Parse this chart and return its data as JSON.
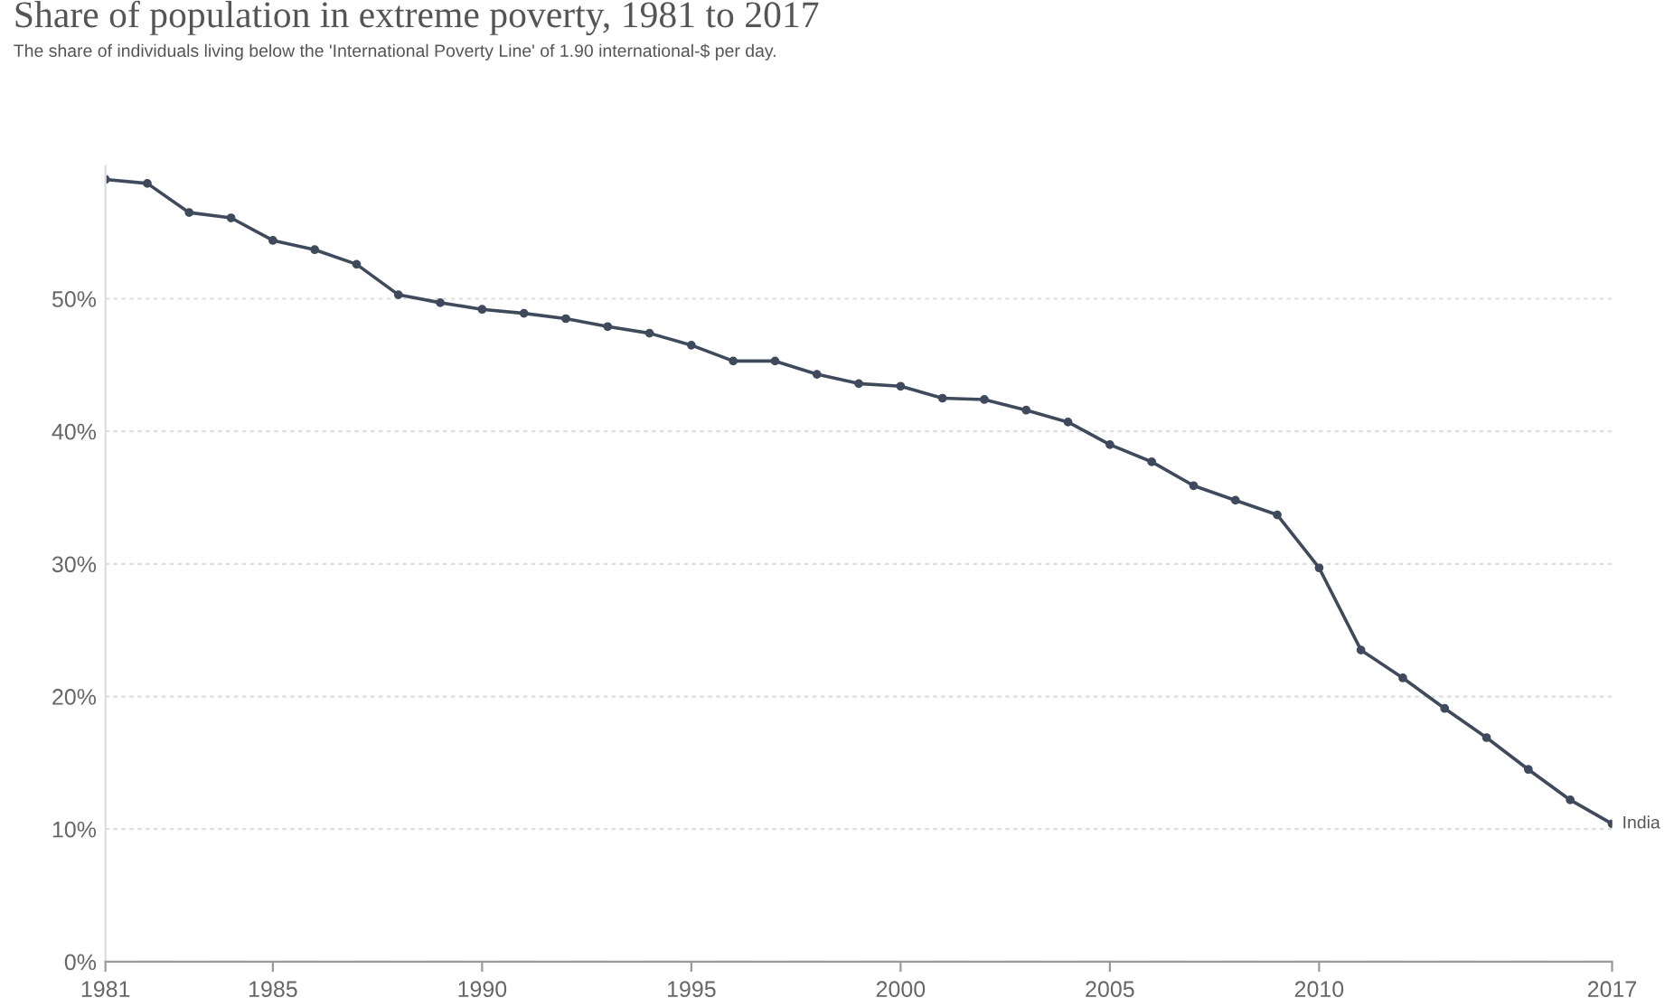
{
  "chart_data": {
    "type": "line",
    "title": "Share of population in extreme poverty, 1981 to 2017",
    "subtitle": "The share of individuals living below the 'International Poverty Line' of 1.90 international-$ per day.",
    "x": [
      1981,
      1982,
      1983,
      1984,
      1985,
      1986,
      1987,
      1988,
      1989,
      1990,
      1991,
      1992,
      1993,
      1994,
      1995,
      1996,
      1997,
      1998,
      1999,
      2000,
      2001,
      2002,
      2003,
      2004,
      2005,
      2006,
      2007,
      2008,
      2009,
      2010,
      2011,
      2012,
      2013,
      2014,
      2015,
      2016,
      2017
    ],
    "series": [
      {
        "name": "India",
        "color": "#3f4a5c",
        "values": [
          59.0,
          58.7,
          56.5,
          56.1,
          54.4,
          53.7,
          52.6,
          50.3,
          49.7,
          49.2,
          48.9,
          48.5,
          47.9,
          47.4,
          46.5,
          45.3,
          45.3,
          44.3,
          43.6,
          43.4,
          42.5,
          42.4,
          41.6,
          40.7,
          39.0,
          37.7,
          35.9,
          34.8,
          33.7,
          29.7,
          23.5,
          21.4,
          19.1,
          16.9,
          14.5,
          12.2,
          10.4
        ]
      }
    ],
    "xlim": [
      1981,
      2017
    ],
    "xticks": [
      1981,
      1985,
      1990,
      1995,
      2000,
      2005,
      2010,
      2017
    ],
    "ylim": [
      0,
      60
    ],
    "yticks": [
      {
        "value": 0,
        "label": "0%"
      },
      {
        "value": 10,
        "label": "10%"
      },
      {
        "value": 20,
        "label": "20%"
      },
      {
        "value": 30,
        "label": "30%"
      },
      {
        "value": 40,
        "label": "40%"
      },
      {
        "value": 50,
        "label": "50%"
      }
    ],
    "grid": "y",
    "marker": "circle",
    "line_style": "solid",
    "legend": false
  }
}
